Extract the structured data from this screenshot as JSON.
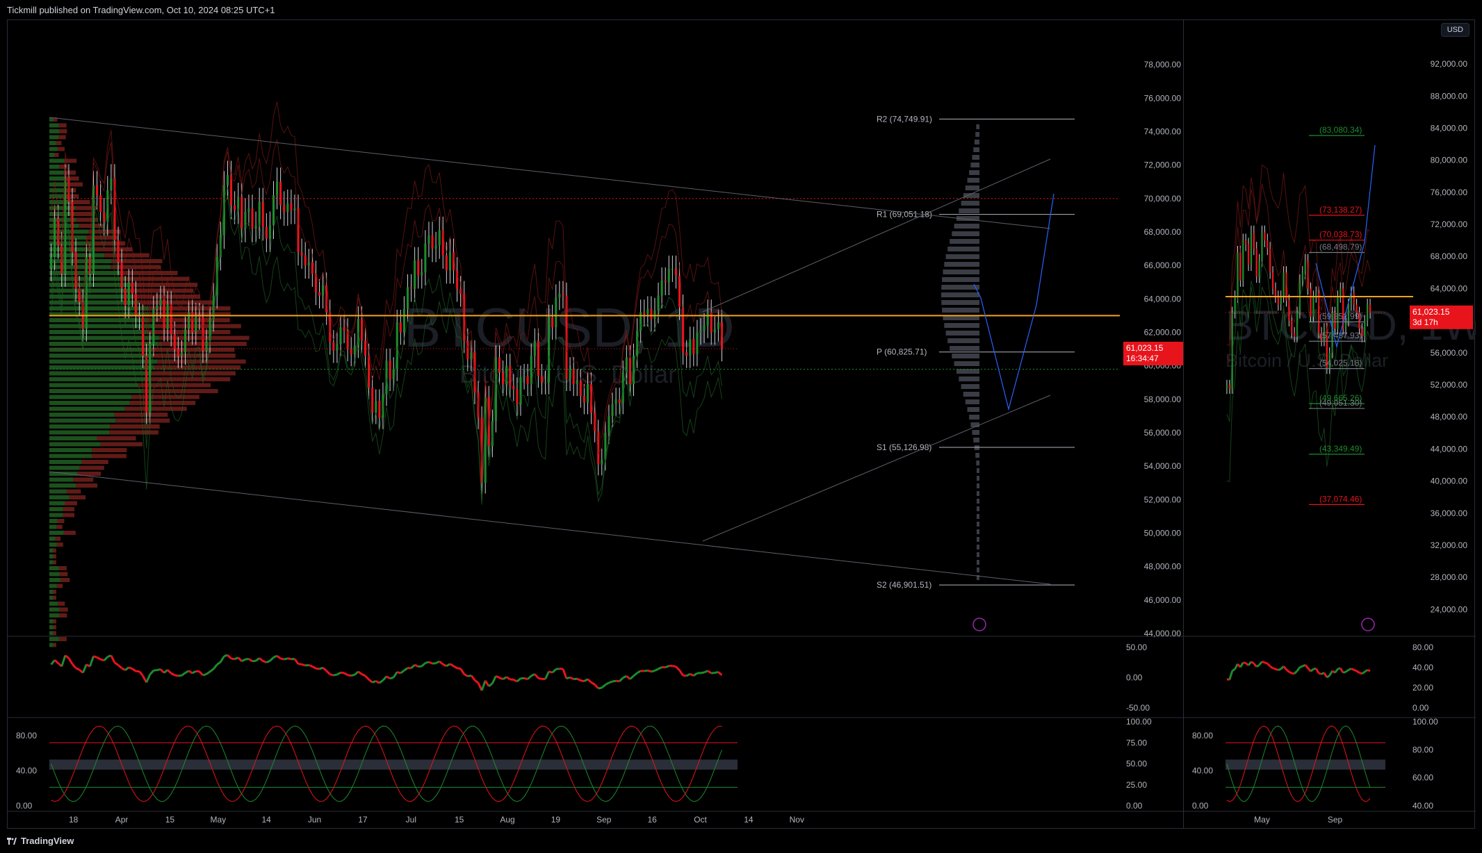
{
  "header": {
    "publisher": "Tickmill published on TradingView.com, Oct 10, 2024 08:25 UTC+1"
  },
  "footer": {
    "brand": "TradingView"
  },
  "colors": {
    "up": "#1e8b2e",
    "down": "#e8141c",
    "bg": "#000000",
    "poc": "#f7a21b",
    "grid": "#1a1d24"
  },
  "chart_data": [
    {
      "type": "candlestick",
      "title": "BTCUSD, 1D",
      "subtitle": "Bitcoin / U.S. Dollar",
      "x_labels": [
        "18",
        "Apr",
        "15",
        "May",
        "14",
        "Jun",
        "17",
        "Jul",
        "15",
        "Aug",
        "19",
        "Sep",
        "16",
        "Oct",
        "14",
        "Nov"
      ],
      "y_ticks": [
        "78,000.00",
        "76,000.00",
        "74,000.00",
        "72,000.00",
        "70,000.00",
        "68,000.00",
        "66,000.00",
        "64,000.00",
        "62,000.00",
        "60,000.00",
        "58,000.00",
        "56,000.00",
        "54,000.00",
        "52,000.00",
        "50,000.00",
        "48,000.00",
        "46,000.00",
        "44,000.00"
      ],
      "ylim": [
        44000,
        79000
      ],
      "last_price": "61,023.15",
      "countdown": "16:34:47",
      "pivots": [
        {
          "label": "R2 (74,749.91)",
          "value": 74749.91
        },
        {
          "label": "R1 (69,051.18)",
          "value": 69051.18
        },
        {
          "label": "P (60,825.71)",
          "value": 60825.71
        },
        {
          "label": "S1 (55,126.98)",
          "value": 55126.98
        },
        {
          "label": "S2 (46,901.51)",
          "value": 46901.51
        }
      ],
      "poc_value": 63000,
      "value_area_high": 70000,
      "value_area_low": 59800,
      "closes": [
        66500,
        68800,
        67200,
        65500,
        71200,
        69800,
        66800,
        64600,
        63800,
        62200,
        66500,
        65500,
        70800,
        70200,
        69200,
        68600,
        70500,
        71200,
        67500,
        66200,
        64600,
        63600,
        65000,
        64300,
        63000,
        62900,
        60600,
        57200,
        61300,
        63400,
        63600,
        64000,
        62200,
        63700,
        61900,
        61000,
        60600,
        60800,
        62200,
        63200,
        62000,
        63000,
        62900,
        60900,
        61500,
        62800,
        64200,
        66500,
        67800,
        70800,
        71400,
        69600,
        69300,
        70100,
        68200,
        69200,
        69400,
        68200,
        68400,
        69800,
        68300,
        67600,
        68400,
        70200,
        71000,
        69600,
        69200,
        69700,
        69300,
        69400,
        66800,
        66600,
        66000,
        66200,
        65500,
        64400,
        64200,
        64800,
        63200,
        61400,
        60900,
        61300,
        62300,
        62100,
        61000,
        60700,
        61200,
        62800,
        61500,
        60600,
        58700,
        57200,
        57900,
        56900,
        58300,
        60300,
        59200,
        59800,
        62600,
        62000,
        63400,
        64700,
        64600,
        66300,
        65400,
        65600,
        67300,
        67800,
        67000,
        67200,
        68100,
        66600,
        65700,
        66800,
        65700,
        64600,
        64300,
        61500,
        60400,
        60800,
        58400,
        56900,
        53000,
        58100,
        55200,
        56700,
        60500,
        59600,
        58900,
        60000,
        58800,
        58600,
        57700,
        59300,
        59400,
        58900,
        60600,
        61500,
        59400,
        59000,
        59000,
        62900,
        62300,
        64100,
        64300,
        64200,
        59200,
        59800,
        58900,
        59100,
        58200,
        57800,
        58900,
        57200,
        56100,
        54100,
        54400,
        56000,
        57000,
        57700,
        58000,
        57800,
        59600,
        60500,
        58900,
        60600,
        62100,
        63200,
        63100,
        63400,
        62800,
        63300,
        64200,
        65100,
        65000,
        65800,
        65800,
        65400,
        63500,
        60800,
        60600,
        61600,
        60700,
        62000,
        62100,
        62400,
        63200,
        62000,
        62200,
        62600,
        61000
      ],
      "rsi_ticks": [
        "50.00",
        "0.00",
        "-50.00"
      ],
      "stoch_ticks": [
        "100.00",
        "75.00",
        "50.00",
        "25.00",
        "0.00"
      ],
      "stoch_left_ticks": [
        "80.00",
        "40.00",
        "0.00"
      ]
    },
    {
      "type": "candlestick",
      "title": "BTCUSD, 1W",
      "subtitle": "Bitcoin / U.S. Dollar",
      "x_labels": [
        "May",
        "Sep"
      ],
      "y_ticks": [
        "92,000.00",
        "88,000.00",
        "84,000.00",
        "80,000.00",
        "76,000.00",
        "72,000.00",
        "68,000.00",
        "64,000.00",
        "60,000.00",
        "56,000.00",
        "52,000.00",
        "48,000.00",
        "44,000.00",
        "40,000.00",
        "36,000.00",
        "32,000.00",
        "28,000.00",
        "24,000.00"
      ],
      "ylim": [
        21000,
        94000
      ],
      "last_price": "61,023.15",
      "countdown": "3d 17h",
      "levels": [
        {
          "label": "(83,080.34)",
          "value": 83080.34,
          "color": "#1e8b2e"
        },
        {
          "label": "(73,138.27)",
          "value": 73138.27,
          "color": "#e8141c"
        },
        {
          "label": "(70,038.73)",
          "value": 70038.73,
          "color": "#e8141c"
        },
        {
          "label": "(68,498.79)",
          "value": 68498.79,
          "color": "#787b86"
        },
        {
          "label": "(59,851.99)",
          "value": 59851.99,
          "color": "#787b86"
        },
        {
          "label": "(57,437.93)",
          "value": 57437.93,
          "color": "#787b86"
        },
        {
          "label": "(54,025.18)",
          "value": 54025.18,
          "color": "#787b86"
        },
        {
          "label": "(49,665.26)",
          "value": 49665.26,
          "color": "#1e8b2e"
        },
        {
          "label": "(49,051.30)",
          "value": 49051.3,
          "color": "#787b86"
        },
        {
          "label": "(43,349.49)",
          "value": 43349.49,
          "color": "#1e8b2e"
        },
        {
          "label": "(37,074.46)",
          "value": 37074.46,
          "color": "#e8141c"
        }
      ],
      "closes": [
        52000,
        51500,
        61000,
        63000,
        68500,
        65000,
        70000,
        69500,
        67000,
        71000,
        69000,
        65500,
        67500,
        71000,
        70000,
        69000,
        66000,
        64000,
        63000,
        62000,
        63000,
        66000,
        62500,
        60000,
        58500,
        58000,
        61000,
        65000,
        66000,
        67500,
        64000,
        60500,
        63000,
        63500,
        58500,
        57500,
        59000,
        54000,
        56000,
        61000,
        59000,
        63000,
        64000,
        59000,
        60000,
        62000,
        63500,
        62000,
        61000,
        59000,
        58000,
        60000,
        62000,
        61000
      ],
      "rsi_ticks": [
        "80.00",
        "40.00",
        "20.00",
        "0.00"
      ],
      "stoch_ticks": [
        "100.00",
        "80.00",
        "60.00",
        "40.00"
      ],
      "stoch_left_ticks": [
        "80.00",
        "40.00",
        "0.00"
      ]
    }
  ],
  "currency_button": "USD"
}
